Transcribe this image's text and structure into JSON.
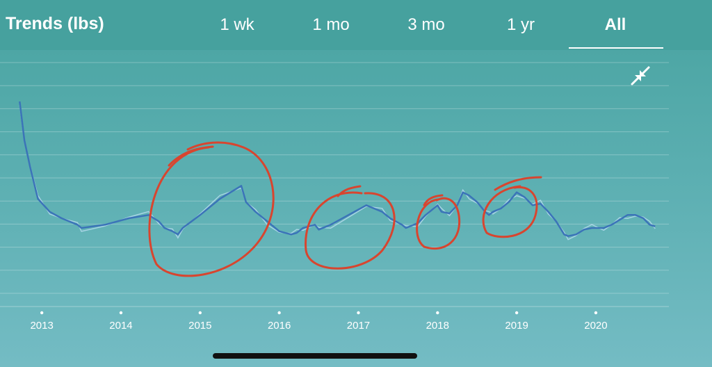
{
  "header": {
    "title": "Trends (lbs)",
    "tabs": [
      {
        "label": "1 wk",
        "active": false
      },
      {
        "label": "1 mo",
        "active": false
      },
      {
        "label": "3 mo",
        "active": false
      },
      {
        "label": "1 yr",
        "active": false
      },
      {
        "label": "All",
        "active": true
      }
    ]
  },
  "icons": {
    "collapse": "collapse-arrows-icon"
  },
  "colors": {
    "background_top": "#48a3a0",
    "background_bottom": "#74bcc4",
    "trend_line": "#3b74b8",
    "raw_line": "#b9dcf0",
    "annotation": "#d8452f"
  },
  "chart_data": {
    "type": "line",
    "title": "",
    "xlabel": "",
    "ylabel": "",
    "x_ticks": [
      "2013",
      "2014",
      "2015",
      "2016",
      "2017",
      "2018",
      "2019",
      "2020"
    ],
    "xlim": [
      2012.7,
      2020.8
    ],
    "grid": true,
    "legend": "none",
    "series": [
      {
        "name": "",
        "x": [
          2012.72,
          2012.78,
          2012.85,
          2012.95,
          2013.1,
          2013.25,
          2013.45,
          2013.5,
          2013.8,
          2014.1,
          2014.35,
          2014.48,
          2014.55,
          2014.65,
          2014.72,
          2014.78,
          2015.0,
          2015.25,
          2015.52,
          2015.58,
          2015.7,
          2015.85,
          2016.0,
          2016.15,
          2016.22,
          2016.3,
          2016.45,
          2016.5,
          2016.65,
          2017.1,
          2017.2,
          2017.3,
          2017.4,
          2017.55,
          2017.6,
          2017.75,
          2017.85,
          2018.0,
          2018.05,
          2018.15,
          2018.25,
          2018.32,
          2018.4,
          2018.5,
          2018.6,
          2018.65,
          2018.7,
          2018.8,
          2018.9,
          2019.0,
          2019.1,
          2019.2,
          2019.3,
          2019.4,
          2019.5,
          2019.6,
          2019.65,
          2019.75,
          2019.85,
          2019.95,
          2020.1,
          2020.2,
          2020.3,
          2020.4,
          2020.5,
          2020.6,
          2020.68,
          2020.75
        ],
        "values": [
          238,
          226,
          218,
          208,
          204,
          202,
          200,
          199,
          200,
          202,
          203,
          201,
          199,
          198,
          197,
          199,
          203,
          208,
          212,
          207,
          204,
          201,
          198,
          197,
          197.5,
          199,
          200,
          198.5,
          200,
          206,
          205,
          204,
          202,
          200,
          199,
          200.5,
          203,
          206,
          204,
          203.5,
          206,
          210,
          209,
          207,
          204,
          203,
          204,
          205,
          207,
          210,
          208.5,
          206,
          206.5,
          204,
          201,
          197,
          196.5,
          197,
          198.5,
          199,
          199,
          200,
          201.5,
          203,
          203,
          202,
          200,
          199.5
        ]
      }
    ],
    "ylim": [
      175,
      250
    ]
  }
}
